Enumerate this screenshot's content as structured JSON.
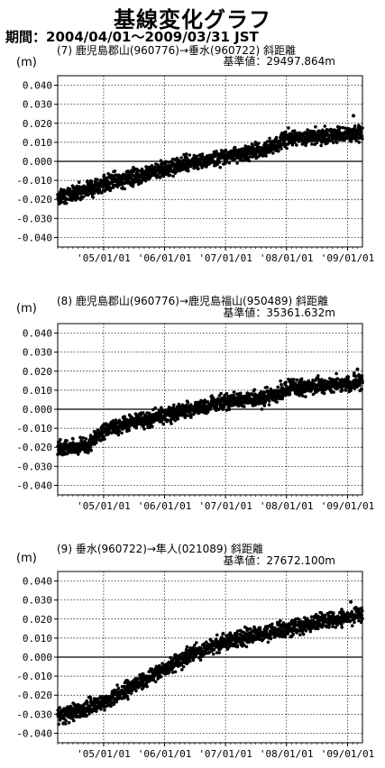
{
  "title": "基線変化グラフ",
  "period_label": "期間",
  "period_value": "2004/04/01～2009/03/31 JST",
  "unit_label": "(m)",
  "chart_data": [
    {
      "type": "scatter",
      "subtitle": "(7) 鹿児島郡山(960776)→垂水(960722)   斜距離",
      "base_value_label": "基準値：29497.864m",
      "ylim": [
        -0.045,
        0.045
      ],
      "yticks": [
        "0.040",
        "0.030",
        "0.020",
        "0.010",
        "0.000",
        "-0.010",
        "-0.020",
        "-0.030",
        "-0.040"
      ],
      "ytick_values": [
        0.04,
        0.03,
        0.02,
        0.01,
        0.0,
        -0.01,
        -0.02,
        -0.03,
        -0.04
      ],
      "xlim": [
        "2004-04-01",
        "2009-03-31"
      ],
      "xticks": [
        "'05/01/01",
        "'06/01/01",
        "'07/01/01",
        "'08/01/01",
        "'09/01/01"
      ],
      "xtick_dates": [
        "2005-01-01",
        "2006-01-01",
        "2007-01-01",
        "2008-01-01",
        "2009-01-01"
      ],
      "grid": true,
      "trend": [
        [
          "2004-04-01",
          -0.019
        ],
        [
          "2005-01-01",
          -0.012
        ],
        [
          "2006-01-01",
          -0.004
        ],
        [
          "2007-01-01",
          0.003
        ],
        [
          "2007-09-01",
          0.006
        ],
        [
          "2008-01-01",
          0.012
        ],
        [
          "2009-03-31",
          0.015
        ]
      ],
      "outliers": [
        [
          "2009-02-05",
          0.024
        ]
      ]
    },
    {
      "type": "scatter",
      "subtitle": "(8) 鹿児島郡山(960776)→鹿児島福山(950489)   斜距離",
      "base_value_label": "基準値：35361.632m",
      "ylim": [
        -0.045,
        0.045
      ],
      "yticks": [
        "0.040",
        "0.030",
        "0.020",
        "0.010",
        "0.000",
        "-0.010",
        "-0.020",
        "-0.030",
        "-0.040"
      ],
      "ytick_values": [
        0.04,
        0.03,
        0.02,
        0.01,
        0.0,
        -0.01,
        -0.02,
        -0.03,
        -0.04
      ],
      "xlim": [
        "2004-04-01",
        "2009-03-31"
      ],
      "xticks": [
        "'05/01/01",
        "'06/01/01",
        "'07/01/01",
        "'08/01/01",
        "'09/01/01"
      ],
      "xtick_dates": [
        "2005-01-01",
        "2006-01-01",
        "2007-01-01",
        "2008-01-01",
        "2009-01-01"
      ],
      "grid": true,
      "trend": [
        [
          "2004-04-01",
          -0.021
        ],
        [
          "2004-10-01",
          -0.019
        ],
        [
          "2005-01-01",
          -0.011
        ],
        [
          "2006-01-01",
          -0.003
        ],
        [
          "2007-01-01",
          0.004
        ],
        [
          "2007-09-01",
          0.006
        ],
        [
          "2008-01-01",
          0.011
        ],
        [
          "2009-03-31",
          0.014
        ]
      ],
      "outliers": [
        [
          "2009-03-01",
          0.021
        ],
        [
          "2009-03-10",
          0.018
        ]
      ]
    },
    {
      "type": "scatter",
      "subtitle": "(9) 垂水(960722)→隼人(021089)   斜距離",
      "base_value_label": "基準値：27672.100m",
      "ylim": [
        -0.045,
        0.045
      ],
      "yticks": [
        "0.040",
        "0.030",
        "0.020",
        "0.010",
        "0.000",
        "-0.010",
        "-0.020",
        "-0.030",
        "-0.040"
      ],
      "ytick_values": [
        0.04,
        0.03,
        0.02,
        0.01,
        0.0,
        -0.01,
        -0.02,
        -0.03,
        -0.04
      ],
      "xlim": [
        "2004-04-01",
        "2009-03-31"
      ],
      "xticks": [
        "'05/01/01",
        "'06/01/01",
        "'07/01/01",
        "'08/01/01",
        "'09/01/01"
      ],
      "xtick_dates": [
        "2005-01-01",
        "2006-01-01",
        "2007-01-01",
        "2008-01-01",
        "2009-01-01"
      ],
      "grid": true,
      "trend": [
        [
          "2004-04-01",
          -0.031
        ],
        [
          "2005-01-01",
          -0.024
        ],
        [
          "2005-09-01",
          -0.012
        ],
        [
          "2006-06-01",
          0.001
        ],
        [
          "2007-01-01",
          0.008
        ],
        [
          "2008-01-01",
          0.015
        ],
        [
          "2009-03-31",
          0.023
        ]
      ],
      "outliers": [
        [
          "2009-01-20",
          0.029
        ]
      ]
    }
  ]
}
